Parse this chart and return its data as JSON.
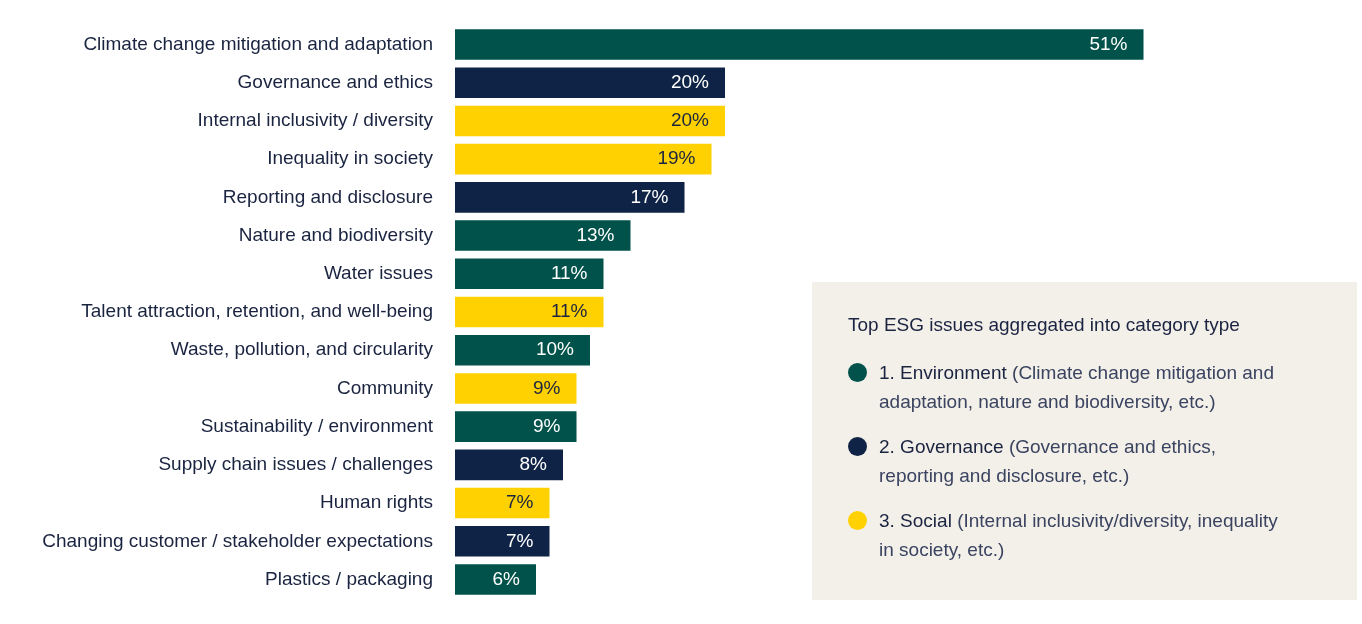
{
  "chart_data": {
    "type": "bar",
    "orientation": "horizontal",
    "stacked": true,
    "legend": "bottom right",
    "legend_title": "Top ESG issues aggregated into category type",
    "categories": [
      "Climate change mitigation and adaptation",
      "Governance and ethics",
      "Internal inclusivity / diversity",
      "Inequality in society",
      "Reporting and disclosure",
      "Nature and biodiversity",
      "Water issues",
      "Talent attraction, retention, and well-being",
      "Waste, pollution, and circularity",
      "Community",
      "Sustainability / environment",
      "Supply chain issues / challenges",
      "Human rights",
      "Changing customer / stakeholder expectations",
      "Plastics / packaging"
    ],
    "series": [
      {
        "name": "1. Environment (Climate change mitigation and adaptation, nature and biodiversity, etc.)",
        "color": "#00524a",
        "values": [
          51,
          null,
          null,
          null,
          null,
          13,
          11,
          null,
          10,
          null,
          9,
          null,
          null,
          null,
          6
        ],
        "value_labels": [
          "51%",
          null,
          null,
          null,
          null,
          "13%",
          "11%",
          null,
          "10%",
          null,
          "9%",
          null,
          null,
          null,
          "6%"
        ]
      },
      {
        "name": "2. Governance (Governance and ethics, reporting and disclosure, etc.)",
        "color": "#0f2346",
        "values": [
          null,
          20,
          null,
          null,
          17,
          null,
          null,
          null,
          null,
          null,
          null,
          8,
          null,
          7,
          null
        ],
        "value_labels": [
          null,
          "20%",
          null,
          null,
          "17%",
          null,
          null,
          null,
          null,
          null,
          null,
          "8%",
          null,
          "7%",
          null
        ]
      },
      {
        "name": "3. Social (Internal inclusivity/diversity, inequality in society, etc.)",
        "color": "#ffd100",
        "values": [
          null,
          null,
          20,
          19,
          null,
          null,
          null,
          11,
          null,
          9,
          null,
          null,
          7,
          null,
          null
        ],
        "value_labels": [
          null,
          null,
          "20%",
          "19%",
          null,
          null,
          null,
          "11%",
          null,
          "9%",
          null,
          null,
          "7%",
          null,
          null
        ]
      }
    ]
  }
}
